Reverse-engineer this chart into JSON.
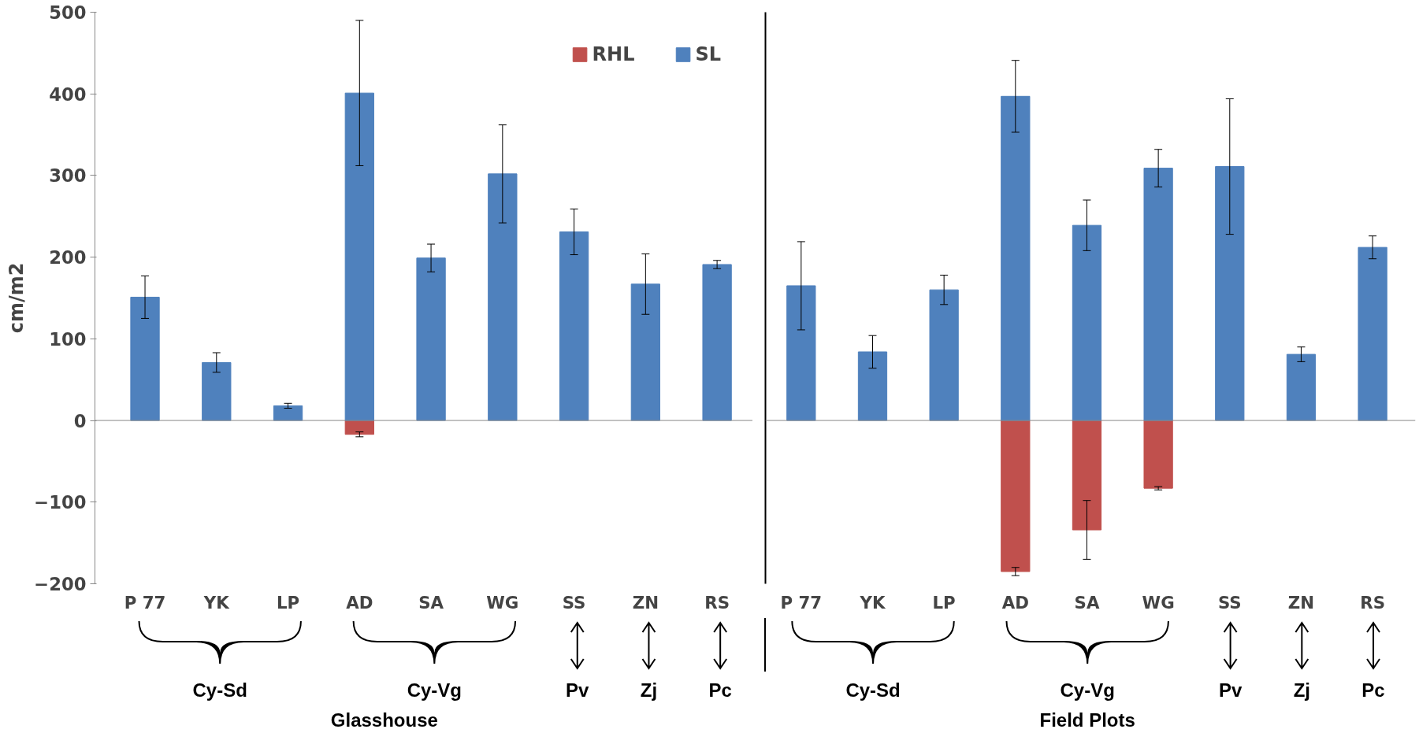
{
  "chart_data": [
    {
      "type": "bar",
      "ylabel": "cm/m2",
      "categories": [
        "P 77",
        "YK",
        "LP",
        "AD",
        "SA",
        "WG",
        "SS",
        "ZN",
        "RS"
      ],
      "series": [
        {
          "name": "RHL",
          "color": "#c0504d",
          "values": [
            null,
            null,
            null,
            -17,
            null,
            null,
            null,
            null,
            null
          ],
          "errors": [
            null,
            null,
            null,
            3,
            null,
            null,
            null,
            null,
            null
          ]
        },
        {
          "name": "SL",
          "color": "#4f81bd",
          "values": [
            151,
            71,
            18,
            401,
            199,
            302,
            231,
            167,
            191
          ],
          "errors": [
            26,
            12,
            3,
            89,
            17,
            60,
            28,
            37,
            5
          ]
        }
      ],
      "ylim": [
        -200,
        500
      ],
      "yticks": [
        -200,
        -100,
        0,
        100,
        200,
        300,
        400,
        500
      ],
      "legend": "top right",
      "annotations": [
        "Cy-Sd",
        "Cy-Vg",
        "Pv",
        "Zj",
        "Pc",
        "Glasshouse"
      ]
    },
    {
      "type": "bar",
      "categories": [
        "P 77",
        "YK",
        "LP",
        "AD",
        "SA",
        "WG",
        "SS",
        "ZN",
        "RS"
      ],
      "series": [
        {
          "color": "#c0504d",
          "values": [
            null,
            null,
            null,
            -185,
            -134,
            -83,
            null,
            null,
            null
          ],
          "errors": [
            null,
            null,
            null,
            5,
            36,
            2,
            null,
            null,
            null
          ]
        },
        {
          "color": "#4f81bd",
          "values": [
            165,
            84,
            160,
            397,
            239,
            309,
            311,
            81,
            212
          ],
          "errors": [
            54,
            20,
            18,
            44,
            31,
            23,
            83,
            9,
            14
          ]
        }
      ],
      "ylim": [
        -200,
        500
      ],
      "yticks": [
        -200,
        -100,
        0,
        100,
        200,
        300,
        400,
        500
      ],
      "tick_labels": "x",
      "annotations": [
        "Cy-Sd",
        "Cy-Vg",
        "Pv",
        "Zj",
        "Pc",
        "Field Plots"
      ]
    }
  ]
}
